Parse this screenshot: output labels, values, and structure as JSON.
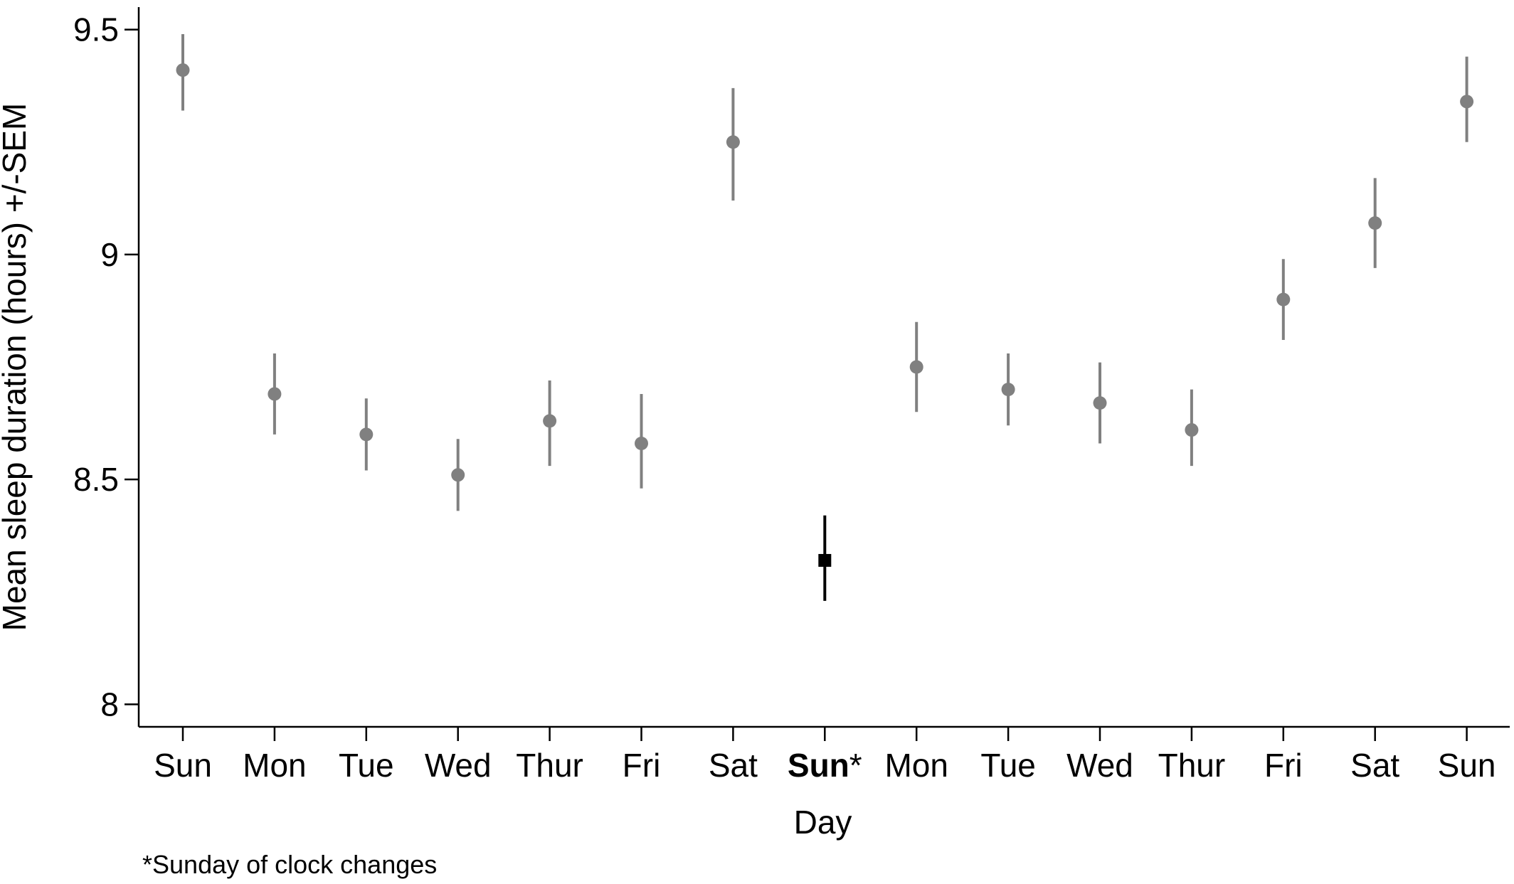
{
  "chart_data": {
    "type": "scatter",
    "xlabel": "Day",
    "ylabel": "Mean sleep duration (hours) +/-SEM",
    "footnote": "*Sunday of clock changes",
    "ylim": [
      7.95,
      9.55
    ],
    "yticks": [
      {
        "value": 8,
        "label": "8"
      },
      {
        "value": 8.5,
        "label": "8.5"
      },
      {
        "value": 9,
        "label": "9"
      },
      {
        "value": 9.5,
        "label": "9.5"
      }
    ],
    "grid": false,
    "legend": "none",
    "colors": {
      "default_marker": "#808080",
      "highlight_marker": "#000000",
      "axis": "#000000"
    },
    "points": [
      {
        "day": "Sun",
        "mean": 9.41,
        "sem_low": 9.32,
        "sem_high": 9.49,
        "highlight": false
      },
      {
        "day": "Mon",
        "mean": 8.69,
        "sem_low": 8.6,
        "sem_high": 8.78,
        "highlight": false
      },
      {
        "day": "Tue",
        "mean": 8.6,
        "sem_low": 8.52,
        "sem_high": 8.68,
        "highlight": false
      },
      {
        "day": "Wed",
        "mean": 8.51,
        "sem_low": 8.43,
        "sem_high": 8.59,
        "highlight": false
      },
      {
        "day": "Thur",
        "mean": 8.63,
        "sem_low": 8.53,
        "sem_high": 8.72,
        "highlight": false
      },
      {
        "day": "Fri",
        "mean": 8.58,
        "sem_low": 8.48,
        "sem_high": 8.69,
        "highlight": false
      },
      {
        "day": "Sat",
        "mean": 9.25,
        "sem_low": 9.12,
        "sem_high": 9.37,
        "highlight": false
      },
      {
        "day": "Sun*",
        "mean": 8.32,
        "sem_low": 8.23,
        "sem_high": 8.42,
        "highlight": true
      },
      {
        "day": "Mon",
        "mean": 8.75,
        "sem_low": 8.65,
        "sem_high": 8.85,
        "highlight": false
      },
      {
        "day": "Tue",
        "mean": 8.7,
        "sem_low": 8.62,
        "sem_high": 8.78,
        "highlight": false
      },
      {
        "day": "Wed",
        "mean": 8.67,
        "sem_low": 8.58,
        "sem_high": 8.76,
        "highlight": false
      },
      {
        "day": "Thur",
        "mean": 8.61,
        "sem_low": 8.53,
        "sem_high": 8.7,
        "highlight": false
      },
      {
        "day": "Fri",
        "mean": 8.9,
        "sem_low": 8.81,
        "sem_high": 8.99,
        "highlight": false
      },
      {
        "day": "Sat",
        "mean": 9.07,
        "sem_low": 8.97,
        "sem_high": 9.17,
        "highlight": false
      },
      {
        "day": "Sun",
        "mean": 9.34,
        "sem_low": 9.25,
        "sem_high": 9.44,
        "highlight": false
      }
    ]
  }
}
